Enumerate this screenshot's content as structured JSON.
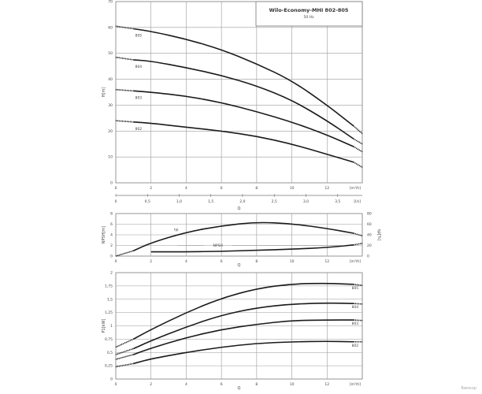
{
  "title": "Wilo-Economy-MHI 802-805",
  "subtitle": "50 Hz",
  "watermark": "Вимхор",
  "colors": {
    "curve": "#1a1a1a",
    "grid": "#9a9a9a"
  },
  "chart_data": [
    {
      "type": "line",
      "xlabel": "Q",
      "ylabel": "H[m]",
      "x_unit": "[m³/h]",
      "x2_unit": "[l/s]",
      "xlim": [
        0,
        14
      ],
      "ylim": [
        0,
        70
      ],
      "x_ticks": [
        "0",
        "2",
        "4",
        "6",
        "8",
        "10",
        "12"
      ],
      "x2_ticks": [
        "0",
        "0,5",
        "1,0",
        "1,5",
        "2,0",
        "2,5",
        "3,0",
        "3,5"
      ],
      "y_ticks": [
        "0",
        "10",
        "20",
        "30",
        "40",
        "50",
        "60",
        "70"
      ],
      "grid": true,
      "x": [
        0,
        1,
        2,
        4,
        6,
        8,
        10,
        12,
        13.5,
        14
      ],
      "series": [
        {
          "name": "805",
          "values": [
            60.5,
            59.5,
            58.5,
            55.5,
            51.5,
            46,
            39.5,
            30,
            22,
            19
          ]
        },
        {
          "name": "804",
          "values": [
            48.5,
            47.5,
            47,
            44.5,
            41.5,
            37.5,
            32,
            24,
            17,
            15
          ]
        },
        {
          "name": "803",
          "values": [
            36,
            35.5,
            35,
            33.5,
            31,
            27.5,
            23.5,
            18.5,
            14,
            12
          ]
        },
        {
          "name": "802",
          "values": [
            24,
            23.5,
            23,
            21.5,
            20,
            18,
            15,
            11,
            8,
            6
          ]
        }
      ]
    },
    {
      "type": "line",
      "xlabel": "Q",
      "ylabel": "NPSH[m]",
      "y2label": "ηp[%]",
      "x_unit": "[m³/h]",
      "xlim": [
        0,
        14
      ],
      "ylim": [
        0,
        8
      ],
      "y2lim": [
        0,
        80
      ],
      "x_ticks": [
        "0",
        "2",
        "4",
        "6",
        "8",
        "10",
        "12"
      ],
      "y_ticks": [
        "0",
        "2",
        "4",
        "6",
        "8"
      ],
      "y2_ticks": [
        "0",
        "20",
        "40",
        "60",
        "80"
      ],
      "grid": true,
      "series": [
        {
          "name": "ηp",
          "axis": "right",
          "x": [
            0,
            1,
            2,
            4,
            6,
            8,
            10,
            12,
            13.5,
            14
          ],
          "values": [
            0,
            10,
            25,
            45,
            57,
            64,
            61,
            52,
            43,
            38
          ]
        },
        {
          "name": "NPSH",
          "axis": "left",
          "x": [
            2,
            4,
            6,
            8,
            10,
            12,
            13.5,
            14
          ],
          "values": [
            0.8,
            0.8,
            0.9,
            1.1,
            1.3,
            1.6,
            2.1,
            2.4
          ]
        }
      ]
    },
    {
      "type": "line",
      "xlabel": "Q",
      "ylabel": "P1[kW]",
      "x_unit": "[m³/h]",
      "xlim": [
        0,
        14
      ],
      "ylim": [
        0,
        2
      ],
      "x_ticks": [
        "0",
        "2",
        "4",
        "6",
        "8",
        "10",
        "12"
      ],
      "y_ticks": [
        "0",
        "0,25",
        "0,5",
        "0,75",
        "1",
        "1,25",
        "1,5",
        "1,75",
        "2"
      ],
      "grid": true,
      "x": [
        0,
        1,
        2,
        4,
        6,
        8,
        10,
        12,
        13.5,
        14
      ],
      "series": [
        {
          "name": "805",
          "values": [
            0.6,
            0.75,
            0.93,
            1.25,
            1.52,
            1.7,
            1.79,
            1.8,
            1.78,
            1.76
          ]
        },
        {
          "name": "804",
          "values": [
            0.46,
            0.57,
            0.72,
            0.98,
            1.2,
            1.34,
            1.41,
            1.43,
            1.42,
            1.41
          ]
        },
        {
          "name": "803",
          "values": [
            0.37,
            0.46,
            0.58,
            0.78,
            0.93,
            1.03,
            1.1,
            1.11,
            1.11,
            1.1
          ]
        },
        {
          "name": "802",
          "values": [
            0.23,
            0.29,
            0.38,
            0.5,
            0.6,
            0.67,
            0.7,
            0.71,
            0.7,
            0.7
          ]
        }
      ]
    }
  ]
}
